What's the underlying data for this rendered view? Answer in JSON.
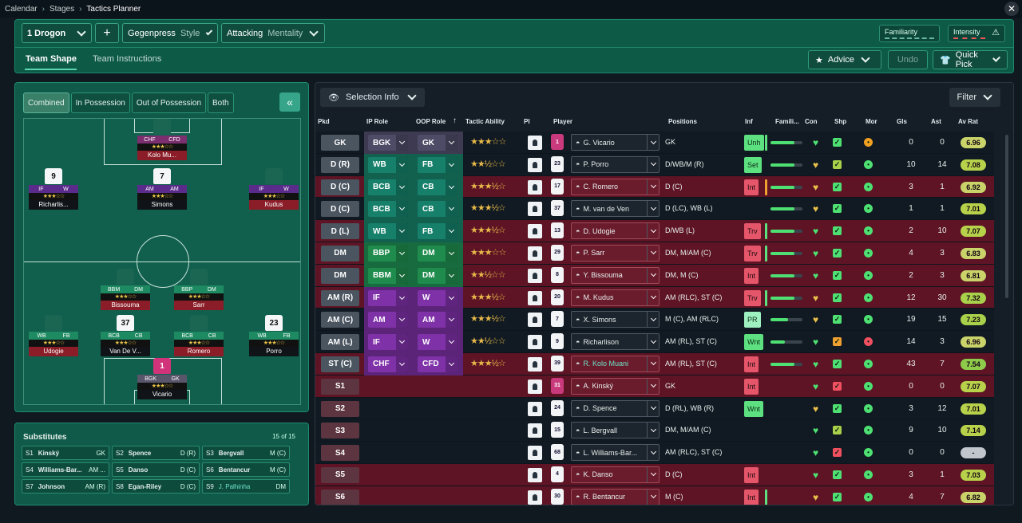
{
  "breadcrumb": {
    "items": [
      "Calendar",
      "Stages",
      "Tactics Planner"
    ]
  },
  "header": {
    "tactic": "1  Drogon",
    "add": "+",
    "style_value": "Gegenpress",
    "style_label": "Style",
    "mentality_value": "Attacking",
    "mentality_label": "Mentality",
    "familiarity": "Familiarity",
    "intensity": "Intensity",
    "tabs": [
      "Team Shape",
      "Team Instructions"
    ],
    "advice": "Advice",
    "undo": "Undo",
    "quickpick": "Quick Pick"
  },
  "pitchpanel": {
    "buttons": [
      "Combined",
      "In Possession",
      "Out of Possession",
      "Both"
    ],
    "collapse": "«"
  },
  "pitch_players": [
    {
      "num": "",
      "ip": "CHF",
      "oop": "CFD",
      "stars": "★★★☆☆",
      "name": "Kolo Mu...",
      "red": true,
      "kit": "dark"
    },
    {
      "num": "9",
      "ip": "IF",
      "oop": "W",
      "stars": "★★★☆☆",
      "name": "Richarlis...",
      "red": false,
      "kit": "white"
    },
    {
      "num": "7",
      "ip": "AM",
      "oop": "AM",
      "stars": "★★★☆☆",
      "name": "Simons",
      "red": false,
      "kit": "white"
    },
    {
      "num": "",
      "ip": "IF",
      "oop": "W",
      "stars": "★★★☆☆",
      "name": "Kudus",
      "red": true,
      "kit": "dark"
    },
    {
      "num": "",
      "ip": "BBM",
      "oop": "DM",
      "stars": "★★★☆☆",
      "name": "Bissouma",
      "red": true,
      "kit": "dark"
    },
    {
      "num": "",
      "ip": "BBP",
      "oop": "DM",
      "stars": "★★★☆☆",
      "name": "Sarr",
      "red": true,
      "kit": "dark"
    },
    {
      "num": "",
      "ip": "WB",
      "oop": "FB",
      "stars": "★★★☆☆",
      "name": "Udogie",
      "red": true,
      "kit": "dark"
    },
    {
      "num": "37",
      "ip": "BCB",
      "oop": "CB",
      "stars": "★★★☆☆",
      "name": "Van De V...",
      "red": false,
      "kit": "white"
    },
    {
      "num": "",
      "ip": "BCB",
      "oop": "CB",
      "stars": "★★★☆☆",
      "name": "Romero",
      "red": true,
      "kit": "dark"
    },
    {
      "num": "23",
      "ip": "WB",
      "oop": "FB",
      "stars": "★★★☆☆",
      "name": "Porro",
      "red": false,
      "kit": "white"
    },
    {
      "num": "1",
      "ip": "BGK",
      "oop": "GK",
      "stars": "★★★☆☆",
      "name": "Vicario",
      "red": false,
      "kit": "pink"
    }
  ],
  "substitutes": {
    "title": "Substitutes",
    "count": "15 of 15",
    "items": [
      {
        "s": "S1",
        "n": "Kinský",
        "p": "GK"
      },
      {
        "s": "S2",
        "n": "Spence",
        "p": "D (R)"
      },
      {
        "s": "S3",
        "n": "Bergvall",
        "p": "M (C)"
      },
      {
        "s": "S4",
        "n": "Williams-Bar...",
        "p": "AM ..."
      },
      {
        "s": "S5",
        "n": "Danso",
        "p": "D (C)"
      },
      {
        "s": "S6",
        "n": "Bentancur",
        "p": "M (C)"
      },
      {
        "s": "S7",
        "n": "Johnson",
        "p": "AM (R)"
      },
      {
        "s": "S8",
        "n": "Egan-Riley",
        "p": "D (C)"
      },
      {
        "s": "S9",
        "n": "J. Palhinha",
        "p": "DM"
      }
    ]
  },
  "table": {
    "selection_info": "Selection Info",
    "filter": "Filter",
    "headers": [
      "Pkd",
      "IP Role",
      "OOP Role",
      "Tactic Ability",
      "PI",
      "Player",
      "Positions",
      "Inf",
      "Famili...",
      "Con",
      "Shp",
      "Mor",
      "Gls",
      "Ast",
      "Av Rat"
    ],
    "rows": [
      {
        "pkd": "GK",
        "ip": "BGK",
        "oop": "GK",
        "ipc": "gk",
        "oopc": "gk",
        "stars": "★★★☆☆",
        "kit": "1",
        "pink": true,
        "player": "G. Vicario",
        "pos": "GK",
        "inf": "Unh",
        "infc": "green",
        "bar": "#5de080",
        "fam": 75,
        "heart": "#4ee072",
        "shp": "#4ee072",
        "mor": "#f0a020",
        "gls": "0",
        "ast": "0",
        "rat": "6.96",
        "ratc": "#c9d36a",
        "row": "dark"
      },
      {
        "pkd": "D (R)",
        "ip": "WB",
        "oop": "FB",
        "ipc": "cb",
        "oopc": "cb",
        "stars": "★★½☆☆",
        "kit": "23",
        "pink": false,
        "player": "P. Porro",
        "pos": "D/WB/M (R)",
        "inf": "Set",
        "infc": "green",
        "bar": "",
        "fam": 75,
        "heart": "#e8c14a",
        "shp": "#a8d04a",
        "mor": "#4ee072",
        "gls": "10",
        "ast": "14",
        "rat": "7.08",
        "ratc": "#b7d24a",
        "row": "dark"
      },
      {
        "pkd": "D (C)",
        "ip": "BCB",
        "oop": "CB",
        "ipc": "cb",
        "oopc": "cb",
        "stars": "★★★½☆",
        "kit": "17",
        "pink": false,
        "player": "C. Romero",
        "pos": "D (C)",
        "inf": "Int",
        "infc": "red",
        "bar": "#f0a030",
        "fam": 75,
        "heart": "#e8c14a",
        "shp": "#4ee072",
        "mor": "#4ee072",
        "gls": "3",
        "ast": "1",
        "rat": "6.92",
        "ratc": "#c9d36a",
        "row": "red"
      },
      {
        "pkd": "D (C)",
        "ip": "BCB",
        "oop": "CB",
        "ipc": "cb",
        "oopc": "cb",
        "stars": "★★★½☆",
        "kit": "37",
        "pink": false,
        "player": "M. van de Ven",
        "pos": "D (LC), WB (L)",
        "inf": "",
        "infc": "",
        "bar": "",
        "fam": 75,
        "heart": "#e8c14a",
        "shp": "#4ee072",
        "mor": "#4ee072",
        "gls": "1",
        "ast": "1",
        "rat": "7.01",
        "ratc": "#b7d24a",
        "row": "dark"
      },
      {
        "pkd": "D (L)",
        "ip": "WB",
        "oop": "FB",
        "ipc": "cb",
        "oopc": "cb",
        "stars": "★★★½☆",
        "kit": "13",
        "pink": false,
        "player": "D. Udogie",
        "pos": "D/WB (L)",
        "inf": "Trv",
        "infc": "red",
        "bar": "#5de080",
        "fam": 75,
        "heart": "#4ee072",
        "shp": "#4ee072",
        "mor": "#4ee072",
        "gls": "2",
        "ast": "10",
        "rat": "7.07",
        "ratc": "#b7d24a",
        "row": "red"
      },
      {
        "pkd": "DM",
        "ip": "BBP",
        "oop": "DM",
        "ipc": "dmr",
        "oopc": "dmr",
        "stars": "★★★☆☆",
        "kit": "29",
        "pink": false,
        "player": "P. Sarr",
        "pos": "DM, M/AM (C)",
        "inf": "Trv",
        "infc": "red",
        "bar": "#5de080",
        "fam": 75,
        "heart": "#4ee072",
        "shp": "#4ee072",
        "mor": "#4ee072",
        "gls": "4",
        "ast": "3",
        "rat": "6.83",
        "ratc": "#c9d36a",
        "row": "red"
      },
      {
        "pkd": "DM",
        "ip": "BBM",
        "oop": "DM",
        "ipc": "dmr",
        "oopc": "dmr",
        "stars": "★★½☆☆",
        "kit": "8",
        "pink": false,
        "player": "Y. Bissouma",
        "pos": "DM, M (C)",
        "inf": "Int",
        "infc": "red",
        "bar": "",
        "fam": 75,
        "heart": "#4ee072",
        "shp": "#4ee072",
        "mor": "#4ee072",
        "gls": "2",
        "ast": "3",
        "rat": "6.81",
        "ratc": "#c9d36a",
        "row": "red"
      },
      {
        "pkd": "AM (R)",
        "ip": "IF",
        "oop": "W",
        "ipc": "atk",
        "oopc": "atk",
        "stars": "★★★½☆",
        "kit": "20",
        "pink": false,
        "player": "M. Kudus",
        "pos": "AM (RLC), ST (C)",
        "inf": "Trv",
        "infc": "red",
        "bar": "#5de080",
        "fam": 75,
        "heart": "#e8c14a",
        "shp": "#4ee072",
        "mor": "#4ee072",
        "gls": "12",
        "ast": "30",
        "rat": "7.32",
        "ratc": "#a8d04a",
        "row": "red"
      },
      {
        "pkd": "AM (C)",
        "ip": "AM",
        "oop": "AM",
        "ipc": "atk",
        "oopc": "atk",
        "stars": "★★★½☆",
        "kit": "7",
        "pink": false,
        "player": "X. Simons",
        "pos": "M (C), AM (RLC)",
        "inf": "PR",
        "infc": "light",
        "bar": "",
        "fam": 55,
        "heart": "#e8c14a",
        "shp": "#4ee072",
        "mor": "#4ee072",
        "gls": "19",
        "ast": "15",
        "rat": "7.23",
        "ratc": "#a8d04a",
        "row": "dark"
      },
      {
        "pkd": "AM (L)",
        "ip": "IF",
        "oop": "W",
        "ipc": "atk",
        "oopc": "atk",
        "stars": "★★½☆☆",
        "kit": "9",
        "pink": false,
        "player": "Richarlison",
        "pos": "AM (RL), ST (C)",
        "inf": "Wnt",
        "infc": "green",
        "bar": "",
        "fam": 45,
        "heart": "#4ee072",
        "shp": "#f0a030",
        "mor": "#f05060",
        "gls": "14",
        "ast": "3",
        "rat": "6.96",
        "ratc": "#c9d36a",
        "row": "dark"
      },
      {
        "pkd": "ST (C)",
        "ip": "CHF",
        "oop": "CFD",
        "ipc": "atk",
        "oopc": "atk",
        "stars": "★★★½☆",
        "kit": "39",
        "pink": false,
        "player": "R. Kolo Muani",
        "pos": "AM (RL), ST (C)",
        "inf": "Int",
        "infc": "red",
        "bar": "",
        "fam": 75,
        "heart": "#4ee072",
        "shp": "#4ee072",
        "mor": "#4ee072",
        "gls": "43",
        "ast": "7",
        "rat": "7.54",
        "ratc": "#8ecb4a",
        "row": "red",
        "teal": true
      },
      {
        "pkd": "S1",
        "ip": "",
        "oop": "",
        "ipc": "",
        "oopc": "",
        "stars": "",
        "kit": "31",
        "pink": true,
        "player": "A. Kinský",
        "pos": "GK",
        "inf": "Int",
        "infc": "red",
        "bar": "",
        "fam": 0,
        "heart": "#4ee072",
        "shp": "#f05060",
        "mor": "#4ee072",
        "gls": "0",
        "ast": "0",
        "rat": "7.07",
        "ratc": "#b7d24a",
        "row": "red",
        "sub": true
      },
      {
        "pkd": "S2",
        "ip": "",
        "oop": "",
        "ipc": "",
        "oopc": "",
        "stars": "",
        "kit": "24",
        "pink": false,
        "player": "D. Spence",
        "pos": "D (RL), WB (R)",
        "inf": "Wnt",
        "infc": "green",
        "bar": "",
        "fam": 0,
        "heart": "#e8c14a",
        "shp": "#4ee072",
        "mor": "#4ee072",
        "gls": "3",
        "ast": "12",
        "rat": "7.01",
        "ratc": "#b7d24a",
        "row": "dark",
        "sub": true
      },
      {
        "pkd": "S3",
        "ip": "",
        "oop": "",
        "ipc": "",
        "oopc": "",
        "stars": "",
        "kit": "15",
        "pink": false,
        "player": "L. Bergvall",
        "pos": "DM, M/AM (C)",
        "inf": "",
        "infc": "",
        "bar": "",
        "fam": 0,
        "heart": "#4ee072",
        "shp": "#a8d04a",
        "mor": "#4ee072",
        "gls": "9",
        "ast": "10",
        "rat": "7.14",
        "ratc": "#b7d24a",
        "row": "dark",
        "sub": true
      },
      {
        "pkd": "S4",
        "ip": "",
        "oop": "",
        "ipc": "",
        "oopc": "",
        "stars": "",
        "kit": "68",
        "pink": false,
        "player": "L. Williams-Bar...",
        "pos": "AM (RLC), ST (C)",
        "inf": "",
        "infc": "",
        "bar": "",
        "fam": 0,
        "heart": "#4ee072",
        "shp": "#f05060",
        "mor": "#4ee072",
        "gls": "0",
        "ast": "0",
        "rat": "-",
        "ratc": "#c0c6cc",
        "row": "dark",
        "sub": true
      },
      {
        "pkd": "S5",
        "ip": "",
        "oop": "",
        "ipc": "",
        "oopc": "",
        "stars": "",
        "kit": "4",
        "pink": false,
        "player": "K. Danso",
        "pos": "D (C)",
        "inf": "Int",
        "infc": "red",
        "bar": "",
        "fam": 0,
        "heart": "#4ee072",
        "shp": "#4ee072",
        "mor": "#4ee072",
        "gls": "3",
        "ast": "1",
        "rat": "7.03",
        "ratc": "#b7d24a",
        "row": "red",
        "sub": true
      },
      {
        "pkd": "S6",
        "ip": "",
        "oop": "",
        "ipc": "",
        "oopc": "",
        "stars": "",
        "kit": "30",
        "pink": false,
        "player": "R. Bentancur",
        "pos": "M (C)",
        "inf": "Int",
        "infc": "red",
        "bar": "#5de080",
        "fam": 0,
        "heart": "#e8c14a",
        "shp": "#4ee072",
        "mor": "#4ee072",
        "gls": "4",
        "ast": "7",
        "rat": "6.82",
        "ratc": "#c9d36a",
        "row": "red",
        "sub": true
      }
    ]
  }
}
